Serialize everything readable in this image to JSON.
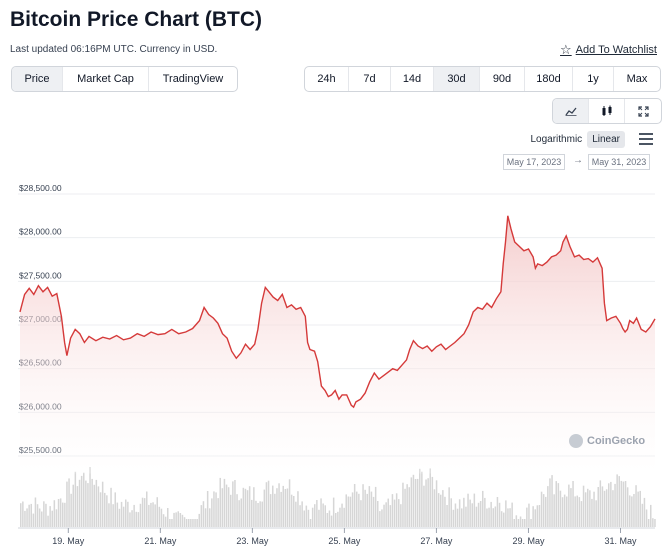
{
  "header": {
    "title": "Bitcoin Price Chart (BTC)",
    "updated": "Last updated 06:16PM UTC. Currency in USD.",
    "watchlist": "Add To Watchlist",
    "watchlist_icon": "star-icon"
  },
  "chart_type_tabs": [
    {
      "label": "Price",
      "active": true
    },
    {
      "label": "Market Cap",
      "active": false
    },
    {
      "label": "TradingView",
      "active": false
    }
  ],
  "range_tabs": [
    {
      "label": "24h",
      "active": false
    },
    {
      "label": "7d",
      "active": false
    },
    {
      "label": "14d",
      "active": false
    },
    {
      "label": "30d",
      "active": true
    },
    {
      "label": "90d",
      "active": false
    },
    {
      "label": "180d",
      "active": false
    },
    {
      "label": "1y",
      "active": false
    },
    {
      "label": "Max",
      "active": false
    }
  ],
  "view_icons": [
    "line-chart-icon",
    "candlestick-icon",
    "fullscreen-icon"
  ],
  "scale": {
    "logarithmic": "Logarithmic",
    "linear": "Linear",
    "selected": "Linear"
  },
  "date_range": {
    "from": "May 17, 2023",
    "arrow": "→",
    "to": "May 31, 2023"
  },
  "brand": "CoinGecko",
  "colors": {
    "line": "#d53a3a",
    "fill": "#f7d8d8",
    "volume": "#d4d4d4",
    "active_tab": "#eef0f3"
  },
  "chart_data": {
    "type": "area",
    "ylabel": "",
    "y_ticks": [
      {
        "value": 28500,
        "label": "$28,500.00"
      },
      {
        "value": 28000,
        "label": "$28,000.00"
      },
      {
        "value": 27500,
        "label": "$27,500.00"
      },
      {
        "value": 27000,
        "label": "$27,000.00"
      },
      {
        "value": 26500,
        "label": "$26,500.00"
      },
      {
        "value": 26000,
        "label": "$26,000.00"
      },
      {
        "value": 25500,
        "label": "$25,500.00"
      }
    ],
    "ylim": [
      25300,
      28700
    ],
    "x_ticks": [
      {
        "day": 19,
        "label": "19. May"
      },
      {
        "day": 21,
        "label": "21. May"
      },
      {
        "day": 23,
        "label": "23. May"
      },
      {
        "day": 25,
        "label": "25. May"
      },
      {
        "day": 27,
        "label": "27. May"
      },
      {
        "day": 29,
        "label": "29. May"
      },
      {
        "day": 31,
        "label": "31. May"
      }
    ],
    "xlim": [
      17.95,
      31.75
    ],
    "series": [
      {
        "points": [
          [
            17.95,
            27150
          ],
          [
            18.05,
            27350
          ],
          [
            18.15,
            27420
          ],
          [
            18.25,
            27350
          ],
          [
            18.35,
            27450
          ],
          [
            18.45,
            27380
          ],
          [
            18.55,
            27430
          ],
          [
            18.65,
            27330
          ],
          [
            18.75,
            27360
          ],
          [
            18.85,
            27100
          ],
          [
            18.92,
            26800
          ],
          [
            18.97,
            26650
          ],
          [
            19.05,
            26850
          ],
          [
            19.15,
            26950
          ],
          [
            19.25,
            26900
          ],
          [
            19.35,
            26800
          ],
          [
            19.45,
            26870
          ],
          [
            19.6,
            26820
          ],
          [
            19.75,
            26860
          ],
          [
            19.9,
            26840
          ],
          [
            20.05,
            26880
          ],
          [
            20.2,
            26830
          ],
          [
            20.35,
            26850
          ],
          [
            20.5,
            26900
          ],
          [
            20.65,
            26870
          ],
          [
            20.8,
            26920
          ],
          [
            20.95,
            26890
          ],
          [
            21.1,
            26900
          ],
          [
            21.25,
            26950
          ],
          [
            21.4,
            26900
          ],
          [
            21.55,
            26920
          ],
          [
            21.7,
            26960
          ],
          [
            21.85,
            27050
          ],
          [
            21.95,
            27200
          ],
          [
            22.05,
            27120
          ],
          [
            22.15,
            27080
          ],
          [
            22.25,
            27020
          ],
          [
            22.35,
            26900
          ],
          [
            22.45,
            26850
          ],
          [
            22.55,
            26700
          ],
          [
            22.65,
            26620
          ],
          [
            22.75,
            26680
          ],
          [
            22.85,
            26780
          ],
          [
            22.95,
            26720
          ],
          [
            23.05,
            26780
          ],
          [
            23.12,
            26950
          ],
          [
            23.2,
            27250
          ],
          [
            23.28,
            27430
          ],
          [
            23.36,
            27380
          ],
          [
            23.45,
            27320
          ],
          [
            23.55,
            27280
          ],
          [
            23.65,
            27350
          ],
          [
            23.75,
            27200
          ],
          [
            23.85,
            27230
          ],
          [
            23.95,
            27180
          ],
          [
            24.05,
            27200
          ],
          [
            24.15,
            27100
          ],
          [
            24.2,
            26800
          ],
          [
            24.25,
            26720
          ],
          [
            24.35,
            26700
          ],
          [
            24.42,
            26580
          ],
          [
            24.5,
            26300
          ],
          [
            24.58,
            26250
          ],
          [
            24.65,
            26180
          ],
          [
            24.72,
            26200
          ],
          [
            24.8,
            26250
          ],
          [
            24.88,
            26150
          ],
          [
            24.95,
            26200
          ],
          [
            25.05,
            26200
          ],
          [
            25.15,
            26080
          ],
          [
            25.2,
            26060
          ],
          [
            25.25,
            26120
          ],
          [
            25.35,
            26150
          ],
          [
            25.45,
            26220
          ],
          [
            25.55,
            26350
          ],
          [
            25.65,
            26450
          ],
          [
            25.75,
            26380
          ],
          [
            25.85,
            26420
          ],
          [
            25.95,
            26460
          ],
          [
            26.05,
            26500
          ],
          [
            26.15,
            26480
          ],
          [
            26.25,
            26540
          ],
          [
            26.35,
            26600
          ],
          [
            26.42,
            26720
          ],
          [
            26.5,
            26820
          ],
          [
            26.6,
            26760
          ],
          [
            26.7,
            26730
          ],
          [
            26.8,
            26760
          ],
          [
            26.9,
            26700
          ],
          [
            27.0,
            26750
          ],
          [
            27.1,
            26780
          ],
          [
            27.2,
            26720
          ],
          [
            27.3,
            26760
          ],
          [
            27.4,
            26800
          ],
          [
            27.5,
            26850
          ],
          [
            27.6,
            26900
          ],
          [
            27.7,
            27000
          ],
          [
            27.8,
            27150
          ],
          [
            27.9,
            27200
          ],
          [
            28.0,
            27180
          ],
          [
            28.1,
            27250
          ],
          [
            28.2,
            27200
          ],
          [
            28.3,
            27300
          ],
          [
            28.4,
            27380
          ],
          [
            28.45,
            27700
          ],
          [
            28.5,
            27950
          ],
          [
            28.55,
            28250
          ],
          [
            28.62,
            28100
          ],
          [
            28.7,
            27950
          ],
          [
            28.8,
            27900
          ],
          [
            28.9,
            27850
          ],
          [
            29.0,
            27870
          ],
          [
            29.1,
            27780
          ],
          [
            29.15,
            27650
          ],
          [
            29.2,
            27700
          ],
          [
            29.3,
            27680
          ],
          [
            29.4,
            27720
          ],
          [
            29.5,
            27780
          ],
          [
            29.6,
            27800
          ],
          [
            29.7,
            27850
          ],
          [
            29.75,
            27950
          ],
          [
            29.82,
            28020
          ],
          [
            29.9,
            27900
          ],
          [
            30.0,
            27780
          ],
          [
            30.1,
            27800
          ],
          [
            30.2,
            27750
          ],
          [
            30.3,
            27760
          ],
          [
            30.4,
            27720
          ],
          [
            30.5,
            27770
          ],
          [
            30.6,
            27650
          ],
          [
            30.65,
            27250
          ],
          [
            30.7,
            27050
          ],
          [
            30.8,
            27080
          ],
          [
            30.9,
            27100
          ],
          [
            31.0,
            27020
          ],
          [
            31.05,
            26960
          ],
          [
            31.1,
            26920
          ],
          [
            31.15,
            26950
          ],
          [
            31.2,
            27050
          ],
          [
            31.28,
            27020
          ],
          [
            31.35,
            27080
          ],
          [
            31.45,
            26950
          ],
          [
            31.55,
            26920
          ],
          [
            31.65,
            26980
          ],
          [
            31.75,
            27070
          ]
        ]
      }
    ],
    "volume_note": "volume bars shown beneath price"
  }
}
